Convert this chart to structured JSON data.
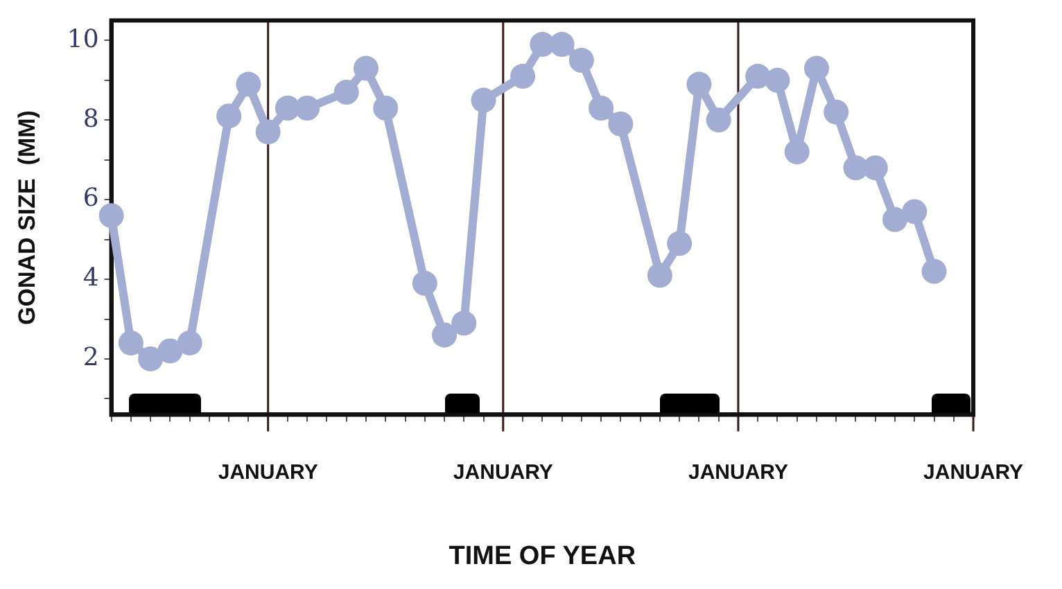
{
  "chart_data": {
    "type": "line",
    "xlabel": "TIME OF YEAR",
    "ylabel": "GONAD SIZE  (MM)",
    "categories": [
      null,
      null,
      null,
      null,
      null,
      null,
      null,
      null,
      "JANUARY",
      null,
      null,
      null,
      null,
      null,
      null,
      null,
      null,
      null,
      null,
      null,
      "JANUARY",
      null,
      null,
      null,
      null,
      null,
      null,
      null,
      null,
      null,
      null,
      null,
      "JANUARY",
      null,
      null,
      null,
      null,
      null,
      null,
      null,
      null,
      null,
      null,
      null,
      "JANUARY"
    ],
    "series": [
      {
        "color": "#a3acd2",
        "values": [
          5.6,
          2.4,
          2.0,
          2.2,
          2.4,
          null,
          8.1,
          8.9,
          7.7,
          8.3,
          8.3,
          null,
          8.7,
          9.3,
          8.3,
          null,
          3.9,
          2.6,
          2.9,
          8.5,
          null,
          9.1,
          9.9,
          9.9,
          9.5,
          8.3,
          7.9,
          null,
          4.1,
          4.9,
          8.9,
          8.0,
          null,
          9.1,
          9.0,
          7.2,
          9.3,
          8.2,
          6.8,
          6.8,
          5.5,
          5.7,
          4.2,
          null,
          null
        ]
      }
    ],
    "ylim": [
      0.6,
      10.5
    ],
    "yticks": [
      {
        "value": 1,
        "label": null
      },
      2,
      {
        "value": 3,
        "label": null
      },
      4,
      {
        "value": 5,
        "label": null
      },
      6,
      {
        "value": 7,
        "label": null
      },
      8,
      {
        "value": 9,
        "label": null
      },
      10
    ],
    "grid": "x",
    "legend": false,
    "marker": "circle",
    "line_style": "solid"
  }
}
